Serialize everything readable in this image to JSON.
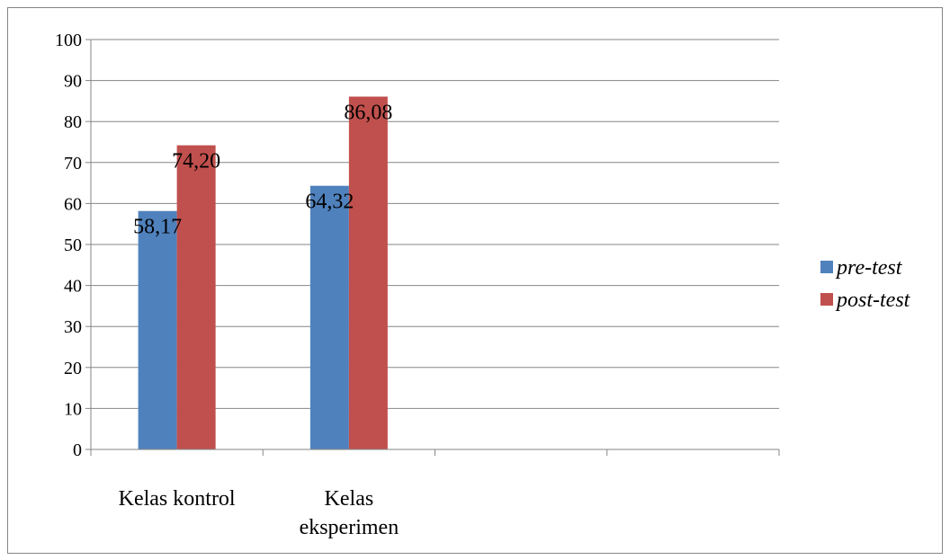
{
  "chart_data": {
    "type": "bar",
    "categories": [
      [
        "Kelas kontrol"
      ],
      [
        "Kelas",
        "eksperimen"
      ],
      [
        ""
      ],
      [
        ""
      ]
    ],
    "series": [
      {
        "name": "pre-test",
        "color": "#4F81BD",
        "values": [
          58.17,
          64.32,
          null,
          null
        ],
        "labels": [
          "58,17",
          "64,32",
          "",
          ""
        ]
      },
      {
        "name": "post-test",
        "color": "#C0504D",
        "values": [
          74.2,
          86.08,
          null,
          null
        ],
        "labels": [
          "74,20",
          "86,08",
          "",
          ""
        ]
      }
    ],
    "ylim": [
      0,
      100
    ],
    "yticks": [
      0,
      10,
      20,
      30,
      40,
      50,
      60,
      70,
      80,
      90,
      100
    ],
    "grid": true,
    "legend_position": "right",
    "title": "",
    "xlabel": "",
    "ylabel": ""
  }
}
